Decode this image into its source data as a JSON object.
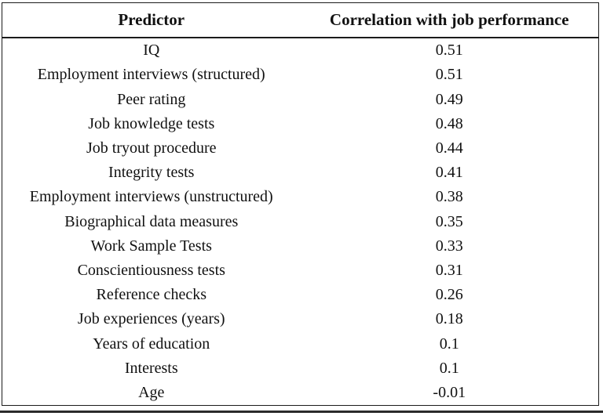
{
  "chart_data": {
    "type": "table",
    "title": "",
    "columns": [
      "Predictor",
      "Correlation with job performance"
    ],
    "rows": [
      {
        "predictor": "IQ",
        "correlation": "0.51"
      },
      {
        "predictor": "Employment interviews (structured)",
        "correlation": "0.51"
      },
      {
        "predictor": "Peer rating",
        "correlation": "0.49"
      },
      {
        "predictor": "Job knowledge tests",
        "correlation": "0.48"
      },
      {
        "predictor": "Job tryout procedure",
        "correlation": "0.44"
      },
      {
        "predictor": "Integrity tests",
        "correlation": "0.41"
      },
      {
        "predictor": "Employment interviews (unstructured)",
        "correlation": "0.38"
      },
      {
        "predictor": "Biographical data measures",
        "correlation": "0.35"
      },
      {
        "predictor": "Work Sample Tests",
        "correlation": "0.33"
      },
      {
        "predictor": "Conscientiousness tests",
        "correlation": "0.31"
      },
      {
        "predictor": "Reference checks",
        "correlation": "0.26"
      },
      {
        "predictor": "Job experiences (years)",
        "correlation": "0.18"
      },
      {
        "predictor": "Years of education",
        "correlation": "0.1"
      },
      {
        "predictor": "Interests",
        "correlation": "0.1"
      },
      {
        "predictor": "Age",
        "correlation": "-0.01"
      }
    ]
  },
  "colors": {
    "background": "#ffffff",
    "text": "#111111",
    "border": "#1b1b1b"
  }
}
